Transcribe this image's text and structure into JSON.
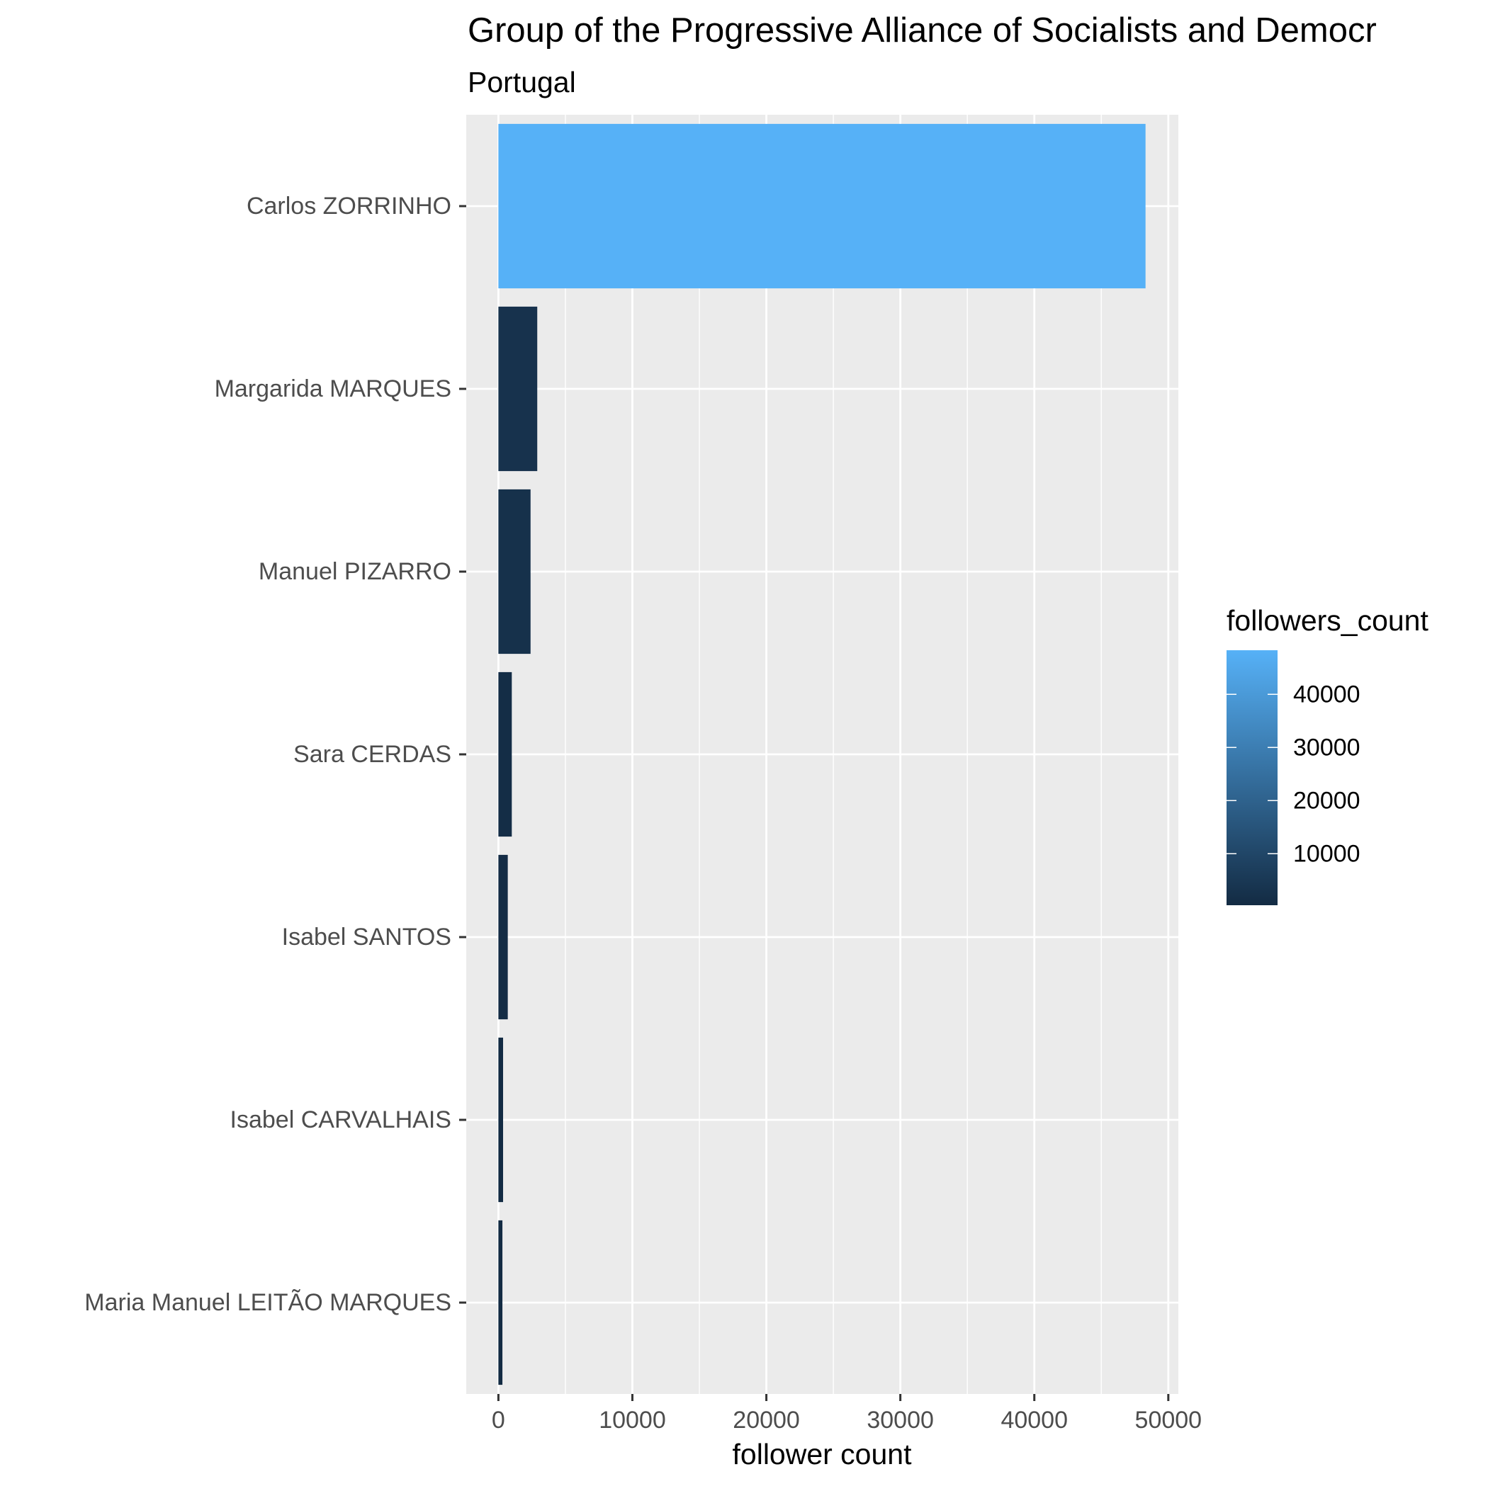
{
  "chart_data": {
    "type": "bar",
    "orientation": "horizontal",
    "title": "Group of the Progressive Alliance of Socialists and Democr",
    "subtitle": "Portugal",
    "xlabel": "follower count",
    "ylabel": "",
    "xlim": [
      -2400,
      50750
    ],
    "xticks": [
      0,
      10000,
      20000,
      30000,
      40000,
      50000
    ],
    "xtick_labels": [
      "0",
      "10000",
      "20000",
      "30000",
      "40000",
      "50000"
    ],
    "x_minor_ticks": [
      5000,
      15000,
      25000,
      35000,
      45000
    ],
    "grid": true,
    "categories": [
      "Carlos ZORRINHO",
      "Margarida MARQUES",
      "Manuel PIZARRO",
      "Sara CERDAS",
      "Isabel SANTOS",
      "Isabel CARVALHAIS",
      "Maria Manuel LEITÃO MARQUES"
    ],
    "values": [
      48300,
      2900,
      2400,
      1000,
      700,
      350,
      300
    ],
    "legend": {
      "title": "followers_count",
      "position": "right",
      "type": "colorbar",
      "range": [
        300,
        48300
      ],
      "color_low": "#132B43",
      "color_high": "#56B1F7",
      "breaks": [
        10000,
        20000,
        30000,
        40000
      ],
      "break_labels": [
        "10000",
        "20000",
        "30000",
        "40000"
      ]
    },
    "colors": {
      "panel_background": "#EBEBEB",
      "grid": "#FFFFFF",
      "axis_text": "#4D4D4D",
      "title_text": "#000000"
    }
  }
}
